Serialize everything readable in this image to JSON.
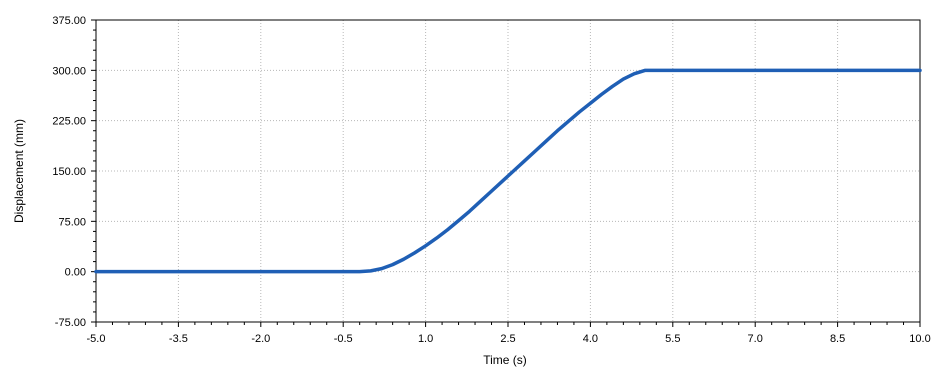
{
  "chart_data": {
    "type": "line",
    "title": "",
    "xlabel": "Time (s)",
    "ylabel": "Displacement (mm)",
    "xlim": [
      -5.0,
      10.0
    ],
    "ylim": [
      -75.0,
      375.0
    ],
    "x_ticks": [
      "-5.0",
      "-3.5",
      "-2.0",
      "-0.5",
      "1.0",
      "2.5",
      "4.0",
      "5.5",
      "7.0",
      "8.5",
      "10.0"
    ],
    "x_tick_values": [
      -5.0,
      -3.5,
      -2.0,
      -0.5,
      1.0,
      2.5,
      4.0,
      5.5,
      7.0,
      8.5,
      10.0
    ],
    "y_ticks": [
      "375.00",
      "300.00",
      "225.00",
      "150.00",
      "75.00",
      "0.00",
      "-75.00"
    ],
    "y_tick_values": [
      375,
      300,
      225,
      150,
      75,
      0,
      -75
    ],
    "grid": true,
    "line_color": "#1f5fb5",
    "series": [
      {
        "x": [
          -5.0,
          -0.2,
          0.0,
          0.2,
          0.4,
          0.6,
          0.8,
          1.0,
          1.2,
          1.4,
          1.6,
          1.8,
          2.0,
          2.2,
          2.4,
          2.6,
          2.8,
          3.0,
          3.2,
          3.4,
          3.6,
          3.8,
          4.0,
          4.2,
          4.4,
          4.6,
          4.8,
          5.0,
          10.0
        ],
        "y": [
          0,
          0,
          1.2,
          4.5,
          10.5,
          18.5,
          28,
          38.5,
          50,
          62.5,
          76,
          90,
          105,
          120,
          135,
          150,
          165,
          180,
          195,
          210,
          224,
          238,
          251,
          264,
          276,
          287,
          295,
          300,
          300
        ]
      }
    ]
  }
}
